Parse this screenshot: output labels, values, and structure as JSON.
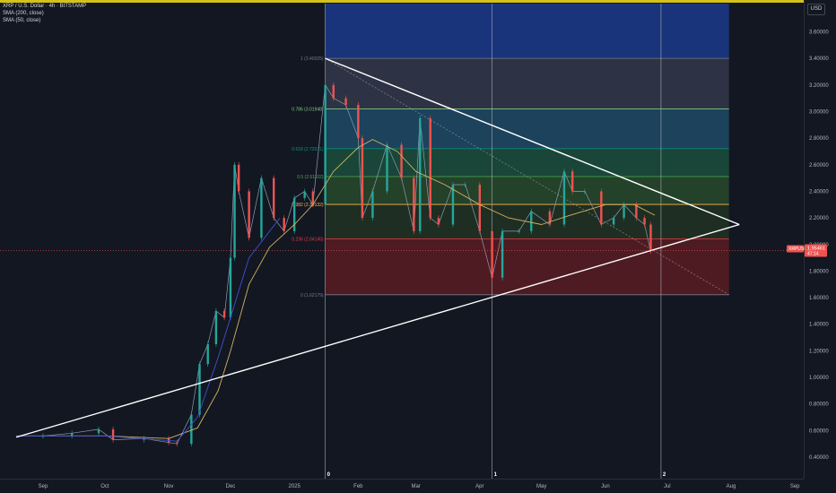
{
  "header": {
    "symbol_line": "XRP / U.S. Dollar · 4h · BITSTAMP",
    "indicator_1": "SMA (200, close)",
    "indicator_2": "SMA (50, close)",
    "currency": "USD"
  },
  "price_tag": {
    "symbol": "XRPUSD",
    "price": "1.95461",
    "countdown": "47:14"
  },
  "colors": {
    "background": "#131722",
    "candle_up": "#26a69a",
    "candle_down": "#ef5350",
    "sma200": "#d1b35e",
    "sma50": "#3f51d0",
    "trendline": "#ffffff",
    "top_bar": "#d4c21a"
  },
  "chart_data": {
    "type": "line",
    "title": "XRP / U.S. Dollar · 4h · BITSTAMP",
    "xlabel": "",
    "ylabel": "USD",
    "y_scale": "linear",
    "ylim": [
      0.34,
      3.9
    ],
    "grid": false,
    "legend_position": "top-left",
    "x_ticks": [
      "Sep",
      "Oct",
      "Nov",
      "Dec",
      "2025",
      "Feb",
      "Mar",
      "Apr",
      "May",
      "Jun",
      "Jul",
      "Aug",
      "Sep"
    ],
    "y_ticks": [
      "3.60000",
      "3.40000",
      "3.20000",
      "3.00000",
      "2.80000",
      "2.60000",
      "2.40000",
      "2.20000",
      "2.00000",
      "1.80000",
      "1.60000",
      "1.40000",
      "1.20000",
      "1.00000",
      "0.80000",
      "0.60000",
      "0.40000"
    ],
    "x_tick_dates": [
      "2024-09-01",
      "2024-10-01",
      "2024-11-01",
      "2024-12-01",
      "2025-01-01",
      "2025-02-01",
      "2025-03-01",
      "2025-04-01",
      "2025-05-01",
      "2025-06-01",
      "2025-07-01",
      "2025-08-01",
      "2025-09-01"
    ],
    "series": [
      {
        "name": "XRP / U.S. Dollar",
        "kind": "price",
        "points": [
          [
            "2024-08-19",
            0.56
          ],
          [
            "2024-09-01",
            0.56
          ],
          [
            "2024-09-15",
            0.58
          ],
          [
            "2024-09-28",
            0.61
          ],
          [
            "2024-10-05",
            0.53
          ],
          [
            "2024-10-20",
            0.54
          ],
          [
            "2024-11-01",
            0.51
          ],
          [
            "2024-11-05",
            0.5
          ],
          [
            "2024-11-12",
            0.72
          ],
          [
            "2024-11-16",
            1.1
          ],
          [
            "2024-11-20",
            1.25
          ],
          [
            "2024-11-24",
            1.5
          ],
          [
            "2024-11-28",
            1.45
          ],
          [
            "2024-12-01",
            1.9
          ],
          [
            "2024-12-03",
            2.6
          ],
          [
            "2024-12-05",
            2.4
          ],
          [
            "2024-12-10",
            2.05
          ],
          [
            "2024-12-16",
            2.5
          ],
          [
            "2024-12-22",
            2.2
          ],
          [
            "2024-12-27",
            2.1
          ],
          [
            "2025-01-01",
            2.35
          ],
          [
            "2025-01-06",
            2.4
          ],
          [
            "2025-01-10",
            2.3
          ],
          [
            "2025-01-16",
            3.2
          ],
          [
            "2025-01-20",
            3.1
          ],
          [
            "2025-01-26",
            3.05
          ],
          [
            "2025-02-01",
            2.8
          ],
          [
            "2025-02-03",
            2.2
          ],
          [
            "2025-02-08",
            2.4
          ],
          [
            "2025-02-15",
            2.75
          ],
          [
            "2025-02-22",
            2.5
          ],
          [
            "2025-02-28",
            2.1
          ],
          [
            "2025-03-03",
            2.95
          ],
          [
            "2025-03-08",
            2.2
          ],
          [
            "2025-03-12",
            2.15
          ],
          [
            "2025-03-19",
            2.45
          ],
          [
            "2025-03-25",
            2.45
          ],
          [
            "2025-04-01",
            2.1
          ],
          [
            "2025-04-07",
            1.75
          ],
          [
            "2025-04-12",
            2.1
          ],
          [
            "2025-04-20",
            2.1
          ],
          [
            "2025-04-26",
            2.25
          ],
          [
            "2025-05-05",
            2.15
          ],
          [
            "2025-05-12",
            2.55
          ],
          [
            "2025-05-16",
            2.4
          ],
          [
            "2025-05-22",
            2.4
          ],
          [
            "2025-05-30",
            2.15
          ],
          [
            "2025-06-05",
            2.2
          ],
          [
            "2025-06-10",
            2.3
          ],
          [
            "2025-06-16",
            2.2
          ],
          [
            "2025-06-20",
            2.15
          ],
          [
            "2025-06-23",
            1.95
          ]
        ]
      },
      {
        "name": "SMA (200, close)",
        "kind": "sma200",
        "points": [
          [
            "2024-08-19",
            0.56
          ],
          [
            "2024-10-01",
            0.56
          ],
          [
            "2024-11-01",
            0.54
          ],
          [
            "2024-11-15",
            0.62
          ],
          [
            "2024-11-25",
            0.9
          ],
          [
            "2024-12-01",
            1.2
          ],
          [
            "2024-12-10",
            1.7
          ],
          [
            "2024-12-20",
            1.98
          ],
          [
            "2025-01-01",
            2.15
          ],
          [
            "2025-01-10",
            2.3
          ],
          [
            "2025-01-20",
            2.55
          ],
          [
            "2025-02-01",
            2.73
          ],
          [
            "2025-02-08",
            2.79
          ],
          [
            "2025-02-20",
            2.7
          ],
          [
            "2025-03-01",
            2.55
          ],
          [
            "2025-03-15",
            2.45
          ],
          [
            "2025-04-01",
            2.3
          ],
          [
            "2025-04-15",
            2.2
          ],
          [
            "2025-05-01",
            2.15
          ],
          [
            "2025-05-15",
            2.22
          ],
          [
            "2025-06-01",
            2.3
          ],
          [
            "2025-06-15",
            2.3
          ],
          [
            "2025-06-25",
            2.22
          ]
        ]
      },
      {
        "name": "SMA (50, close)",
        "kind": "sma50",
        "points": [
          [
            "2024-08-19",
            0.56
          ],
          [
            "2024-10-01",
            0.56
          ],
          [
            "2024-11-05",
            0.52
          ],
          [
            "2024-11-15",
            0.7
          ],
          [
            "2024-11-25",
            1.15
          ],
          [
            "2024-12-01",
            1.45
          ],
          [
            "2024-12-10",
            1.9
          ],
          [
            "2024-12-25",
            2.2
          ]
        ]
      }
    ],
    "trendlines": [
      {
        "name": "upper trendline",
        "from": [
          "2025-01-16",
          3.4
        ],
        "to": [
          "2025-08-05",
          2.15
        ]
      },
      {
        "name": "lower trendline",
        "from": [
          "2024-08-19",
          0.55
        ],
        "to": [
          "2025-08-05",
          2.15
        ]
      }
    ],
    "fibonacci": {
      "x_from": "2025-01-16",
      "x_to": "2025-07-31",
      "levels": [
        {
          "ratio": "1",
          "label": "1 (3.40025)",
          "value": 3.40025,
          "color": "#787b86"
        },
        {
          "ratio": "0.786",
          "label": "0.786 (3.01948)",
          "value": 3.01948,
          "color": "#81c784"
        },
        {
          "ratio": "0.618",
          "label": "0.618 (2.72071)",
          "value": 2.72071,
          "color": "#089981"
        },
        {
          "ratio": "0.5",
          "label": "0.5 (2.51102)",
          "value": 2.51102,
          "color": "#4caf50"
        },
        {
          "ratio": "0.382",
          "label": "0.382 (2.30132)",
          "value": 2.30132,
          "color": "#ffb74d"
        },
        {
          "ratio": "0.236",
          "label": "0.236 (2.04145)",
          "value": 2.04145,
          "color": "#f23645"
        },
        {
          "ratio": "0",
          "label": "0 (1.62179)",
          "value": 1.62179,
          "color": "#787b86"
        }
      ],
      "extension_top": 3.9,
      "bands": [
        {
          "from": 3.40025,
          "to": 3.9,
          "color": "#1c3a8c"
        },
        {
          "from": 3.01948,
          "to": 3.40025,
          "color": "#33384a"
        },
        {
          "from": 2.72071,
          "to": 3.01948,
          "color": "#1f4a66"
        },
        {
          "from": 2.51102,
          "to": 2.72071,
          "color": "#1b4f3c"
        },
        {
          "from": 2.30132,
          "to": 2.51102,
          "color": "#28492b"
        },
        {
          "from": 2.04145,
          "to": 2.30132,
          "color": "#213323"
        },
        {
          "from": 1.62179,
          "to": 2.04145,
          "color": "#5b1c22"
        }
      ]
    },
    "cycle_lines": [
      {
        "label": "0",
        "date": "2025-01-16"
      },
      {
        "label": "1",
        "date": "2025-04-07"
      },
      {
        "label": "2",
        "date": "2025-06-28"
      }
    ],
    "current_price": 1.95461
  }
}
